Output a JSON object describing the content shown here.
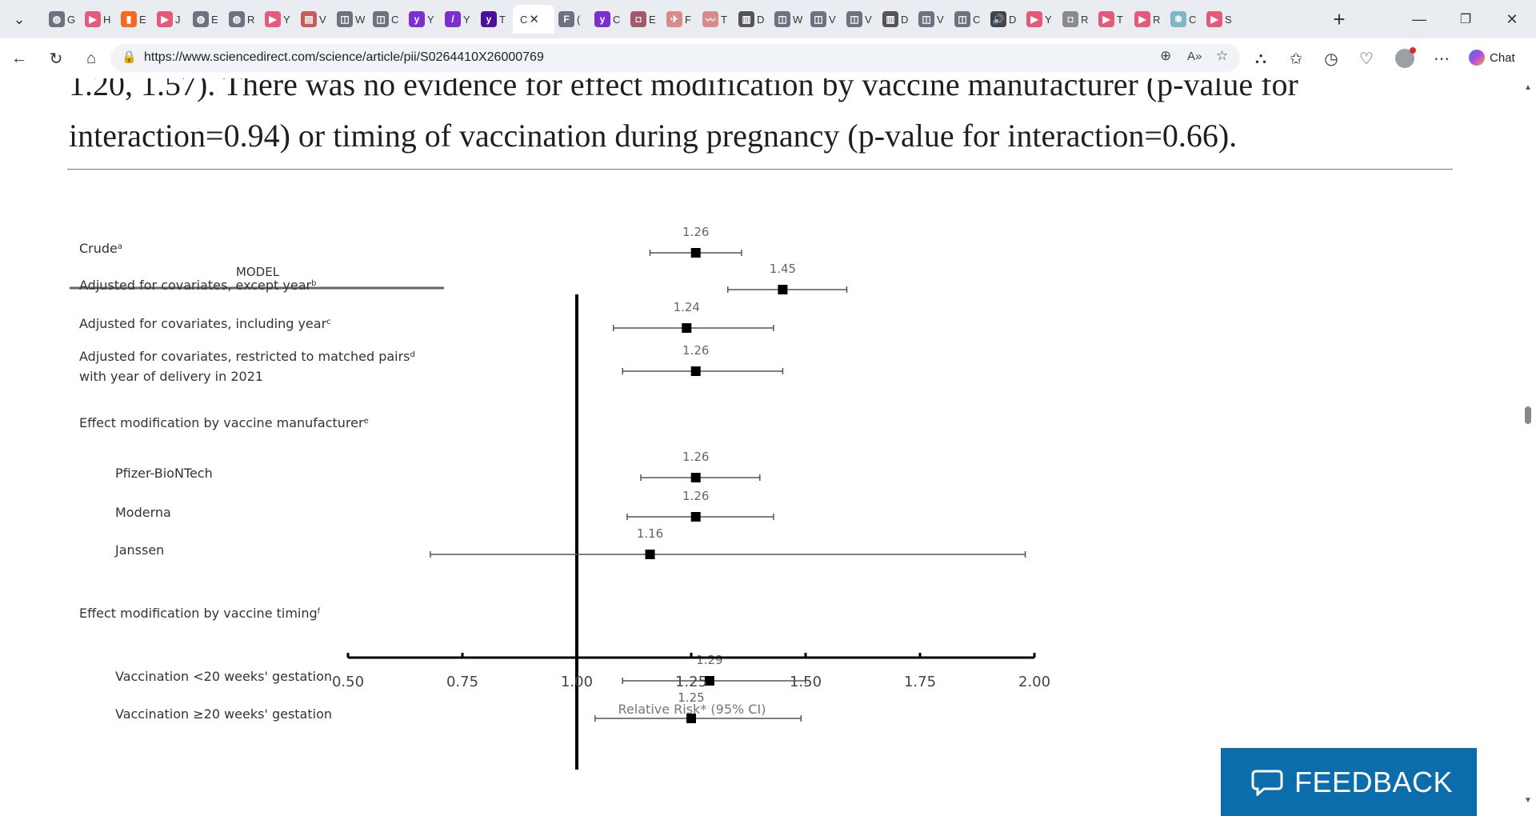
{
  "browser": {
    "tabs": [
      {
        "icon": "globe-icon",
        "color": "#6b7280",
        "glyph": "◍",
        "letter": "G"
      },
      {
        "icon": "youtube-icon",
        "color": "#e55a7a",
        "glyph": "▶",
        "letter": "H"
      },
      {
        "icon": "bookmark-icon",
        "color": "#f36b21",
        "glyph": "▮",
        "letter": "E"
      },
      {
        "icon": "youtube-icon",
        "color": "#e55a7a",
        "glyph": "▶",
        "letter": "J"
      },
      {
        "icon": "globe-icon",
        "color": "#6b7280",
        "glyph": "◍",
        "letter": "E"
      },
      {
        "icon": "globe-icon",
        "color": "#6b7280",
        "glyph": "◍",
        "letter": "R"
      },
      {
        "icon": "youtube-icon",
        "color": "#e55a7a",
        "glyph": "▶",
        "letter": "Y"
      },
      {
        "icon": "pdf-icon",
        "color": "#c85a5a",
        "glyph": "▤",
        "letter": "V"
      },
      {
        "icon": "page-icon",
        "color": "#6b7280",
        "glyph": "◫",
        "letter": "W"
      },
      {
        "icon": "page-icon",
        "color": "#6b7280",
        "glyph": "◫",
        "letter": "C"
      },
      {
        "icon": "yahoo-icon",
        "color": "#7b2fd0",
        "glyph": "y",
        "letter": "Y"
      },
      {
        "icon": "yahoo-icon",
        "color": "#7b2fd0",
        "glyph": "/",
        "letter": "Y"
      },
      {
        "icon": "yahoo-icon",
        "color": "#4b0f9c",
        "glyph": "y",
        "letter": "T"
      },
      {
        "icon": "fp-icon",
        "color": "#6b7280",
        "glyph": "F",
        "letter": "("
      },
      {
        "icon": "yahoo-icon",
        "color": "#7b2fd0",
        "glyph": "y",
        "letter": "C"
      },
      {
        "icon": "image-icon",
        "color": "#a45a6a",
        "glyph": "◘",
        "letter": "E"
      },
      {
        "icon": "plane-icon",
        "color": "#d98a8a",
        "glyph": "✈",
        "letter": "F"
      },
      {
        "icon": "wave-icon",
        "color": "#d98a8a",
        "glyph": "〰",
        "letter": "T"
      },
      {
        "icon": "book-icon",
        "color": "#555555",
        "glyph": "▥",
        "letter": "D"
      },
      {
        "icon": "page-icon",
        "color": "#6b7280",
        "glyph": "◫",
        "letter": "W"
      },
      {
        "icon": "page-icon",
        "color": "#6b7280",
        "glyph": "◫",
        "letter": "V"
      },
      {
        "icon": "page-icon",
        "color": "#6b7280",
        "glyph": "◫",
        "letter": "V"
      },
      {
        "icon": "book-icon",
        "color": "#555555",
        "glyph": "▥",
        "letter": "D"
      },
      {
        "icon": "page-icon",
        "color": "#6b7280",
        "glyph": "◫",
        "letter": "V"
      },
      {
        "icon": "page-icon",
        "color": "#6b7280",
        "glyph": "◫",
        "letter": "C"
      },
      {
        "icon": "speaker-icon",
        "color": "#444444",
        "glyph": "🔊",
        "letter": "D"
      },
      {
        "icon": "youtube-icon",
        "color": "#e55a7a",
        "glyph": "▶",
        "letter": "Y"
      },
      {
        "icon": "image-icon",
        "color": "#8a8a8a",
        "glyph": "◘",
        "letter": "R"
      },
      {
        "icon": "youtube-icon",
        "color": "#e55a7a",
        "glyph": "▶",
        "letter": "T"
      },
      {
        "icon": "youtube-icon",
        "color": "#e55a7a",
        "glyph": "▶",
        "letter": "R"
      },
      {
        "icon": "snowflake-icon",
        "color": "#7fb7c9",
        "glyph": "❄",
        "letter": "C"
      },
      {
        "icon": "youtube-icon",
        "color": "#e55a7a",
        "glyph": "▶",
        "letter": "S"
      }
    ],
    "active_tab": {
      "letter": "C"
    },
    "url": "https://www.sciencedirect.com/science/article/pii/S0264410X26000769",
    "copilot_label": "Chat"
  },
  "article": {
    "line1": "1.20, 1.57). There was no evidence for effect modification by vaccine manufacturer (p-value for",
    "line2": "interaction=0.94) or timing of vaccination during pregnancy (p-value for interaction=0.66)."
  },
  "feedback_label": "FEEDBACK",
  "chart_data": {
    "type": "forest",
    "column_header": "MODEL",
    "xlabel": "Relative Risk* (95% CI)",
    "xlim": [
      0.5,
      2.0
    ],
    "xticks": [
      "0.50",
      "0.75",
      "1.00",
      "1.25",
      "1.50",
      "1.75",
      "2.00"
    ],
    "reference_line": 1.0,
    "rows": [
      {
        "label": "Crude",
        "sup": "a",
        "indent": false,
        "rr": 1.26,
        "lo": 1.16,
        "hi": 1.36,
        "rr_label": "1.26"
      },
      {
        "label": "Adjusted for covariates, except year",
        "sup": "b",
        "indent": false,
        "rr": 1.45,
        "lo": 1.33,
        "hi": 1.59,
        "rr_label": "1.45"
      },
      {
        "label": "Adjusted for covariates, including year",
        "sup": "c",
        "indent": false,
        "rr": 1.24,
        "lo": 1.08,
        "hi": 1.43,
        "rr_label": "1.24"
      },
      {
        "label": "Adjusted for covariates, restricted to matched pairs",
        "label2": "with year of delivery in 2021",
        "sup": "d",
        "indent": false,
        "rr": 1.26,
        "lo": 1.1,
        "hi": 1.45,
        "rr_label": "1.26"
      },
      {
        "label": "Effect modification by vaccine manufacturer",
        "sup": "e",
        "indent": false,
        "header": true
      },
      {
        "label": "Pfizer-BioNTech",
        "indent": true,
        "rr": 1.26,
        "lo": 1.14,
        "hi": 1.4,
        "rr_label": "1.26"
      },
      {
        "label": "Moderna",
        "indent": true,
        "rr": 1.26,
        "lo": 1.11,
        "hi": 1.43,
        "rr_label": "1.26"
      },
      {
        "label": "Janssen",
        "indent": true,
        "rr": 1.16,
        "lo": 0.68,
        "hi": 1.98,
        "rr_label": "1.16"
      },
      {
        "label": "Effect modification by vaccine timing",
        "sup": "f",
        "indent": false,
        "header": true
      },
      {
        "label": "Vaccination <20 weeks' gestation",
        "indent": true,
        "rr": 1.29,
        "lo": 1.1,
        "hi": 1.5,
        "rr_label": "1.29"
      },
      {
        "label": "Vaccination ≥20 weeks' gestation",
        "indent": true,
        "rr": 1.25,
        "lo": 1.04,
        "hi": 1.49,
        "rr_label": "1.25"
      }
    ]
  }
}
